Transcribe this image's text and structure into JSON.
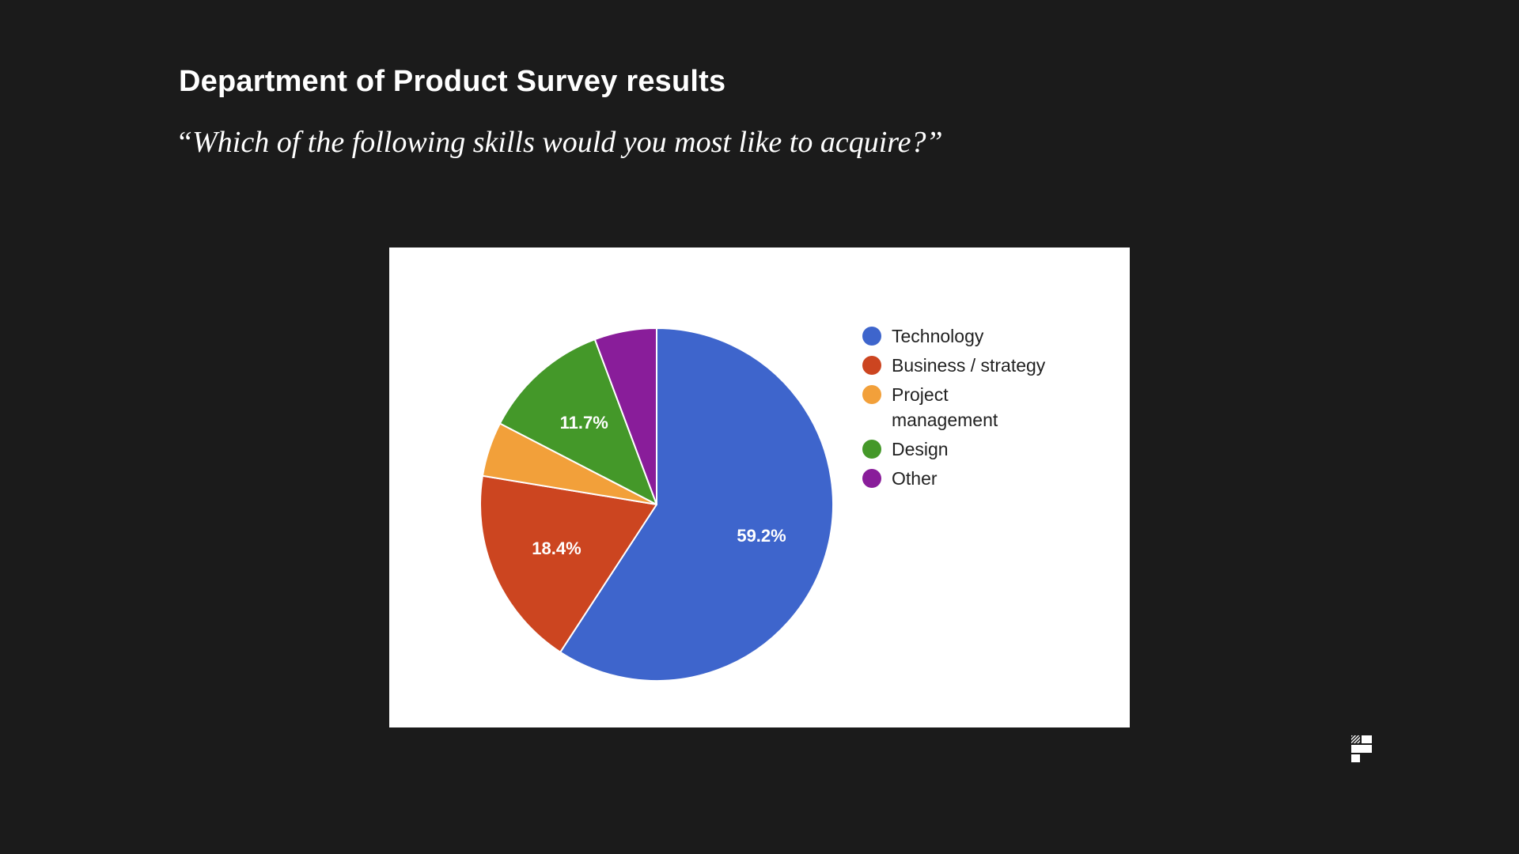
{
  "slide": {
    "title": "Department of Product Survey results",
    "subtitle": "“Which of the following skills would you most like to acquire?”",
    "logo_icon": "brand-logo-icon"
  },
  "chart_data": {
    "type": "pie",
    "title": "",
    "start_angle_deg": 0,
    "direction": "clockwise",
    "legend_position": "right",
    "slices": [
      {
        "label": "Technology",
        "legend_lines": [
          "Technology"
        ],
        "value": 59.2,
        "display": "59.2%",
        "color": "#3e65cc"
      },
      {
        "label": "Business / strategy",
        "legend_lines": [
          "Business / strategy"
        ],
        "value": 18.4,
        "display": "18.4%",
        "color": "#cc4520"
      },
      {
        "label": "Project management",
        "legend_lines": [
          "Project",
          "management"
        ],
        "value": 5.0,
        "display": "",
        "color": "#f2a03a"
      },
      {
        "label": "Design",
        "legend_lines": [
          "Design"
        ],
        "value": 11.7,
        "display": "11.7%",
        "color": "#449829"
      },
      {
        "label": "Other",
        "legend_lines": [
          "Other"
        ],
        "value": 5.7,
        "display": "",
        "color": "#891d9a"
      }
    ]
  }
}
